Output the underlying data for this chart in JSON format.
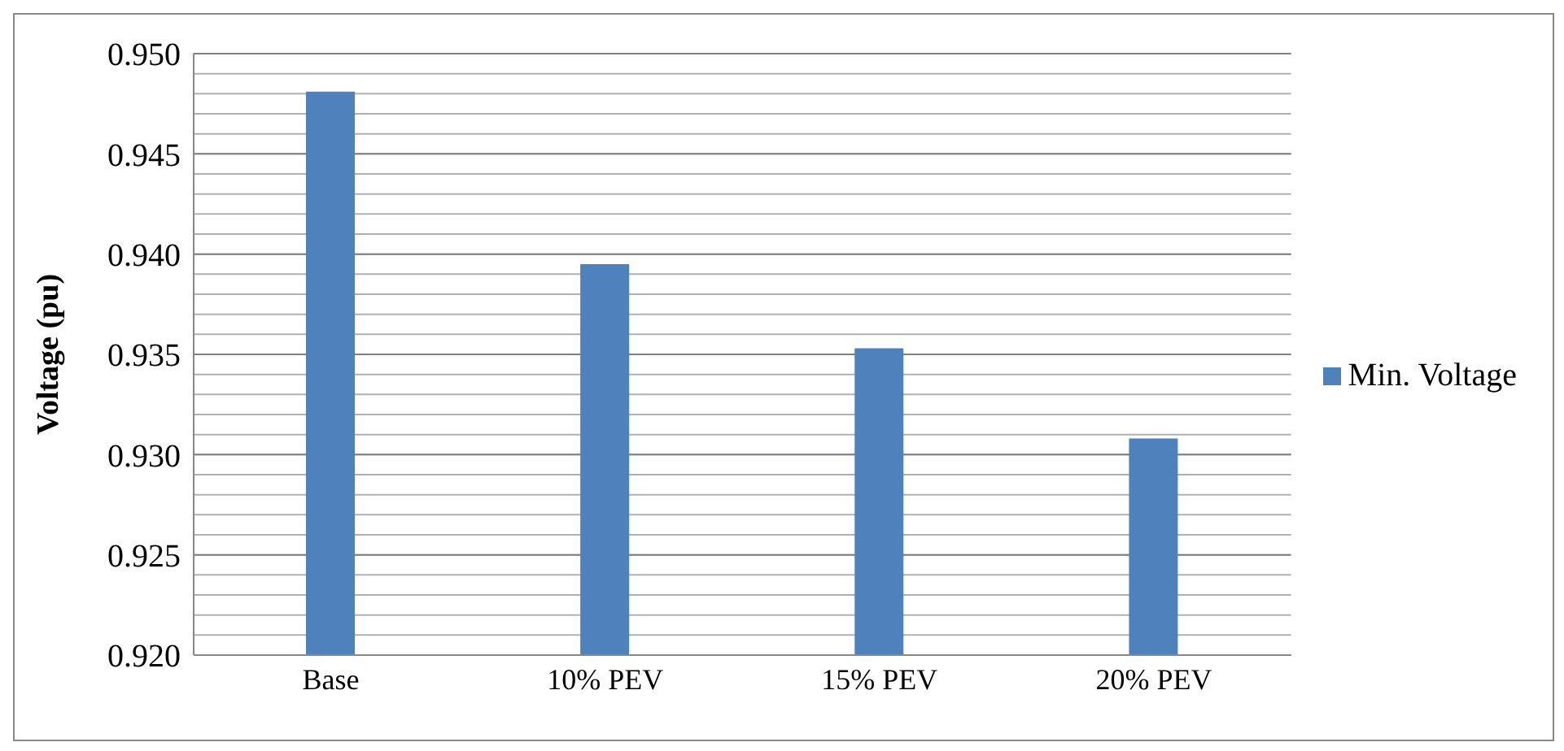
{
  "chart_data": {
    "type": "bar",
    "ylabel": "Voltage (pu)",
    "categories": [
      "Base",
      "10% PEV",
      "15% PEV",
      "20% PEV"
    ],
    "series": [
      {
        "name": "Min. Voltage",
        "color": "#4f81bd",
        "values": [
          0.9481,
          0.9395,
          0.9353,
          0.9308
        ]
      }
    ],
    "ylim": [
      0.92,
      0.95
    ],
    "yticks": [
      {
        "value": 0.92,
        "label": "0.920"
      },
      {
        "value": 0.921,
        "label": null
      },
      {
        "value": 0.922,
        "label": null
      },
      {
        "value": 0.923,
        "label": null
      },
      {
        "value": 0.924,
        "label": null
      },
      {
        "value": 0.925,
        "label": "0.925"
      },
      {
        "value": 0.926,
        "label": null
      },
      {
        "value": 0.927,
        "label": null
      },
      {
        "value": 0.928,
        "label": null
      },
      {
        "value": 0.929,
        "label": null
      },
      {
        "value": 0.93,
        "label": "0.930"
      },
      {
        "value": 0.931,
        "label": null
      },
      {
        "value": 0.932,
        "label": null
      },
      {
        "value": 0.933,
        "label": null
      },
      {
        "value": 0.934,
        "label": null
      },
      {
        "value": 0.935,
        "label": "0.935"
      },
      {
        "value": 0.936,
        "label": null
      },
      {
        "value": 0.937,
        "label": null
      },
      {
        "value": 0.938,
        "label": null
      },
      {
        "value": 0.939,
        "label": null
      },
      {
        "value": 0.94,
        "label": "0.940"
      },
      {
        "value": 0.941,
        "label": null
      },
      {
        "value": 0.942,
        "label": null
      },
      {
        "value": 0.943,
        "label": null
      },
      {
        "value": 0.944,
        "label": null
      },
      {
        "value": 0.945,
        "label": "0.945"
      },
      {
        "value": 0.946,
        "label": null
      },
      {
        "value": 0.947,
        "label": null
      },
      {
        "value": 0.948,
        "label": null
      },
      {
        "value": 0.949,
        "label": null
      },
      {
        "value": 0.95,
        "label": "0.950"
      }
    ],
    "grid": "y",
    "legend": "right"
  }
}
